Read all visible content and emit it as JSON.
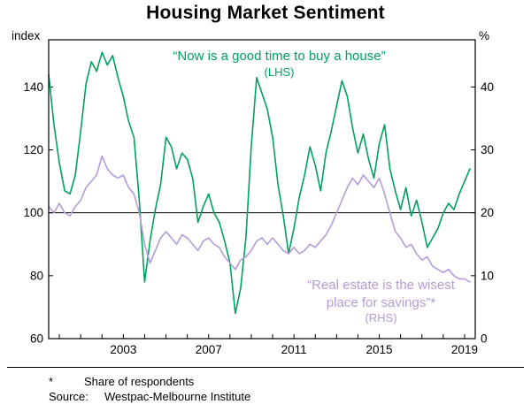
{
  "chart": {
    "title": "Housing Market Sentiment",
    "left_unit": "index",
    "right_unit": "%",
    "annotations": {
      "green_line1": "“Now is a good time to buy a house”",
      "green_line2": "(LHS)",
      "purple_line1": "“Real estate is the wisest",
      "purple_line2": "place for savings”*",
      "purple_line3": "(RHS)"
    },
    "footnotes": {
      "asterisk_symbol": "*",
      "asterisk_text": "Share of respondents",
      "source_label": "Source:",
      "source_text": "Westpac-Melbourne Institute"
    }
  },
  "chart_data": {
    "type": "line",
    "title": "Housing Market Sentiment",
    "left_axis": {
      "unit": "index",
      "ticks": [
        60,
        80,
        100,
        120,
        140
      ],
      "range": [
        60,
        155
      ]
    },
    "right_axis": {
      "unit": "%",
      "ticks": [
        0,
        10,
        20,
        30,
        40
      ],
      "range": [
        0,
        47.5
      ]
    },
    "x_axis": {
      "range": [
        1999.5,
        2019.5
      ],
      "labeled_years": [
        2003,
        2007,
        2011,
        2015,
        2019
      ]
    },
    "reference_line_lhs": 100,
    "grid": false,
    "series": [
      {
        "name": "Now is a good time to buy a house",
        "axis": "LHS",
        "color": "#00a05f",
        "x_start": 1999.5,
        "x_step": 0.25,
        "values": [
          144,
          128,
          116,
          107,
          106,
          112,
          126,
          141,
          148,
          145,
          151,
          147,
          150,
          143,
          137,
          129,
          124,
          104,
          78,
          91,
          101,
          109,
          124,
          121,
          114,
          119,
          117,
          111,
          97,
          102,
          106,
          100,
          97,
          91,
          84,
          68,
          76,
          92,
          121,
          143,
          138,
          133,
          124,
          109,
          99,
          87,
          95,
          105,
          112,
          121,
          115,
          107,
          119,
          126,
          134,
          142,
          137,
          127,
          119,
          125,
          117,
          111,
          122,
          128,
          114,
          107,
          101,
          108,
          99,
          104,
          97,
          89,
          92,
          95,
          100,
          103,
          101,
          106,
          110,
          114
        ]
      },
      {
        "name": "Real estate is the wisest place for savings",
        "axis": "RHS",
        "color": "#b59cd9",
        "x_start": 1999.5,
        "x_step": 0.25,
        "values": [
          21,
          20,
          21.5,
          20,
          19.5,
          21,
          22,
          24,
          25,
          26,
          29,
          27,
          26,
          25.5,
          26,
          24,
          23,
          20,
          15,
          12,
          14,
          16,
          17,
          16,
          15,
          16.5,
          16,
          15,
          14,
          15.5,
          16,
          15,
          14.5,
          13,
          12,
          11,
          12.5,
          13,
          14,
          15.5,
          16,
          15,
          16,
          15,
          14,
          13.5,
          14.5,
          13.5,
          14,
          15,
          14.5,
          15.5,
          16.5,
          18,
          20,
          22,
          24,
          25.5,
          24.5,
          26,
          25,
          24,
          25.5,
          23,
          20,
          17,
          16,
          14.5,
          15,
          13.5,
          12.5,
          13,
          11.5,
          11,
          10.5,
          11,
          10,
          9.5,
          9.5,
          9
        ]
      }
    ]
  }
}
